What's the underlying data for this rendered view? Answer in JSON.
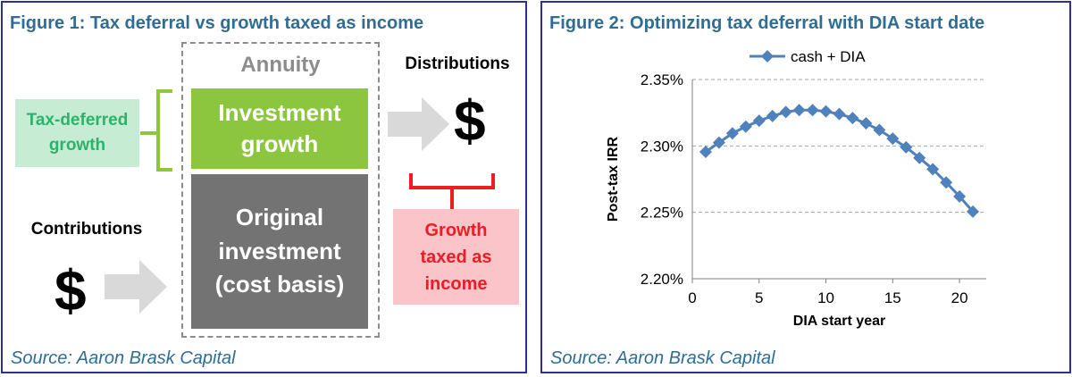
{
  "figure1": {
    "title": "Figure 1: Tax deferral vs growth taxed as income",
    "annuity_label": "Annuity",
    "investment_growth": [
      "Investment",
      "growth"
    ],
    "original_investment": [
      "Original",
      "investment",
      "(cost basis)"
    ],
    "tax_deferred_growth": [
      "Tax-deferred",
      "growth"
    ],
    "growth_taxed_as_income": [
      "Growth",
      "taxed as",
      "income"
    ],
    "distributions_label": "Distributions",
    "contributions_label": "Contributions",
    "dollar_symbol": "$",
    "source": "Source: Aaron Brask Capital",
    "colors": {
      "green": "#8cc63f",
      "grey": "#737373",
      "light_green": "#c6ecd4",
      "red": "#ee1c25",
      "pink": "#fac4c8"
    },
    "icons": [
      "right-arrow-icon",
      "left-brace-icon",
      "bottom-brace-icon"
    ]
  },
  "figure2": {
    "title": "Figure 2: Optimizing tax deferral with DIA start date",
    "source": "Source: Aaron Brask Capital"
  },
  "chart_data": {
    "type": "line",
    "xlabel": "DIA start year",
    "ylabel": "Post-tax IRR",
    "x_ticks": [
      "0",
      "5",
      "10",
      "15",
      "20"
    ],
    "y_ticks": [
      "2.20%",
      "2.25%",
      "2.30%",
      "2.35%"
    ],
    "xlim": [
      0,
      22
    ],
    "ylim": [
      2.2,
      2.35
    ],
    "grid": "horizontal dashed",
    "legend_position": "top",
    "series": [
      {
        "name": "cash + DIA",
        "color": "#4f81bd",
        "marker": "diamond",
        "x": [
          1,
          2,
          3,
          4,
          5,
          6,
          7,
          8,
          9,
          10,
          11,
          12,
          13,
          14,
          15,
          16,
          17,
          18,
          19,
          20,
          21
        ],
        "y": [
          2.2955,
          2.3025,
          2.3095,
          2.3145,
          2.319,
          2.3225,
          2.3255,
          2.327,
          2.327,
          2.326,
          2.324,
          2.321,
          2.317,
          2.312,
          2.3055,
          2.299,
          2.291,
          2.2825,
          2.2725,
          2.262,
          2.2505
        ]
      }
    ]
  }
}
